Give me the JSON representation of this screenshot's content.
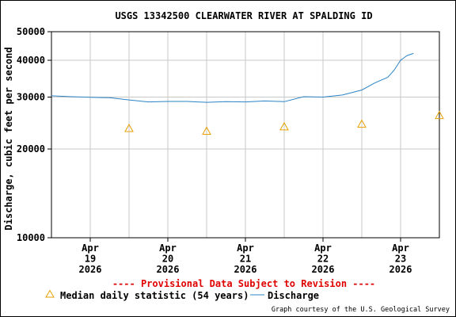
{
  "chart_data": {
    "type": "line",
    "title": "USGS 13342500 CLEARWATER RIVER AT SPALDING ID",
    "ylabel": "Discharge, cubic feet per second",
    "yscale": "log",
    "ylim": [
      10000,
      50000
    ],
    "yticks": [
      {
        "value": 10000,
        "label": "10000"
      },
      {
        "value": 20000,
        "label": "20000"
      },
      {
        "value": 30000,
        "label": "30000"
      },
      {
        "value": 40000,
        "label": "40000"
      },
      {
        "value": 50000,
        "label": "50000"
      }
    ],
    "xlim": [
      "2026-04-18T12:00",
      "2026-04-23T12:00"
    ],
    "xticks": [
      {
        "value": "2026-04-19T00:00",
        "label": [
          "Apr",
          "19",
          "2026"
        ]
      },
      {
        "value": "2026-04-20T00:00",
        "label": [
          "Apr",
          "20",
          "2026"
        ]
      },
      {
        "value": "2026-04-21T00:00",
        "label": [
          "Apr",
          "21",
          "2026"
        ]
      },
      {
        "value": "2026-04-22T00:00",
        "label": [
          "Apr",
          "22",
          "2026"
        ]
      },
      {
        "value": "2026-04-23T00:00",
        "label": [
          "Apr",
          "23",
          "2026"
        ]
      }
    ],
    "grid": true,
    "series": [
      {
        "name": "Discharge",
        "kind": "line",
        "color": "#2a84c6",
        "points": [
          [
            "2026-04-18T12:00",
            30300
          ],
          [
            "2026-04-18T18:00",
            30100
          ],
          [
            "2026-04-19T00:00",
            29950
          ],
          [
            "2026-04-19T06:00",
            29850
          ],
          [
            "2026-04-19T12:00",
            29350
          ],
          [
            "2026-04-19T18:00",
            28900
          ],
          [
            "2026-04-20T00:00",
            29000
          ],
          [
            "2026-04-20T06:00",
            29000
          ],
          [
            "2026-04-20T12:00",
            28800
          ],
          [
            "2026-04-20T18:00",
            28950
          ],
          [
            "2026-04-21T00:00",
            28900
          ],
          [
            "2026-04-21T06:00",
            29100
          ],
          [
            "2026-04-21T12:00",
            28950
          ],
          [
            "2026-04-21T18:00",
            30100
          ],
          [
            "2026-04-22T00:00",
            30000
          ],
          [
            "2026-04-22T06:00",
            30500
          ],
          [
            "2026-04-22T12:00",
            31700
          ],
          [
            "2026-04-22T16:00",
            33500
          ],
          [
            "2026-04-22T20:00",
            35000
          ],
          [
            "2026-04-22T22:00",
            37000
          ],
          [
            "2026-04-23T00:00",
            40000
          ],
          [
            "2026-04-23T02:00",
            41500
          ],
          [
            "2026-04-23T04:00",
            42200
          ]
        ]
      },
      {
        "name": "Median daily statistic (54 years)",
        "kind": "marker",
        "marker": "triangle",
        "color": "#e8a000",
        "points": [
          [
            "2026-04-19T12:00",
            23500
          ],
          [
            "2026-04-20T12:00",
            23000
          ],
          [
            "2026-04-21T12:00",
            23800
          ],
          [
            "2026-04-22T12:00",
            24300
          ],
          [
            "2026-04-23T12:00",
            26000
          ]
        ]
      }
    ],
    "legend_placement": "bottom",
    "notice": "---- Provisional Data Subject to Revision ----",
    "credit": "Graph courtesy of the U.S. Geological Survey"
  }
}
